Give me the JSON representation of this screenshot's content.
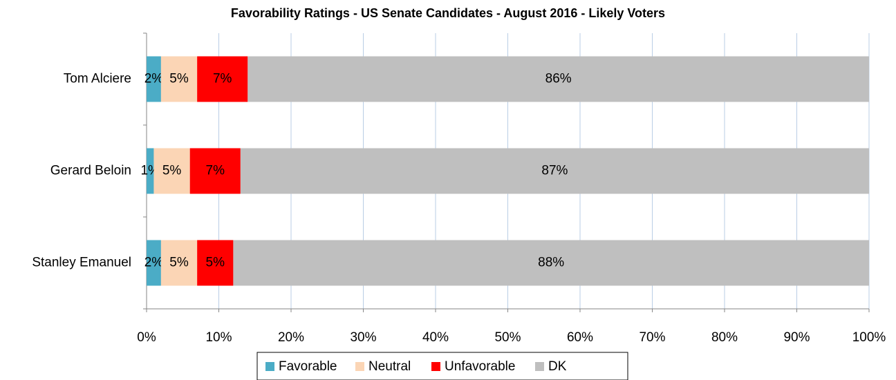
{
  "chart_data": {
    "type": "stacked-bar-horizontal",
    "title": "Favorability Ratings - US Senate Candidates - August 2016 - Likely Voters",
    "categories": [
      "Tom Alciere",
      "Gerard Beloin",
      "Stanley Emanuel"
    ],
    "series": [
      {
        "name": "Favorable",
        "color": "#4bacc6",
        "values": [
          2,
          1,
          2
        ],
        "value_labels": [
          "2%",
          "1%",
          "2%"
        ]
      },
      {
        "name": "Neutral",
        "color": "#fbd5b5",
        "values": [
          5,
          5,
          5
        ],
        "value_labels": [
          "5%",
          "5%",
          "5%"
        ]
      },
      {
        "name": "Unfavorable",
        "color": "#ff0000",
        "values": [
          7,
          7,
          5
        ],
        "value_labels": [
          "7%",
          "7%",
          "5%"
        ]
      },
      {
        "name": "DK",
        "color": "#bfbfbf",
        "values": [
          86,
          87,
          88
        ],
        "value_labels": [
          "86%",
          "87%",
          "88%"
        ]
      }
    ],
    "xlim": [
      0,
      100
    ],
    "xticks": [
      {
        "value": 0,
        "label": "0%"
      },
      {
        "value": 10,
        "label": "10%"
      },
      {
        "value": 20,
        "label": "20%"
      },
      {
        "value": 30,
        "label": "30%"
      },
      {
        "value": 40,
        "label": "40%"
      },
      {
        "value": 50,
        "label": "50%"
      },
      {
        "value": 60,
        "label": "60%"
      },
      {
        "value": 70,
        "label": "70%"
      },
      {
        "value": 80,
        "label": "80%"
      },
      {
        "value": 90,
        "label": "90%"
      },
      {
        "value": 100,
        "label": "100%"
      }
    ],
    "grid": true,
    "legend": "bottom"
  }
}
